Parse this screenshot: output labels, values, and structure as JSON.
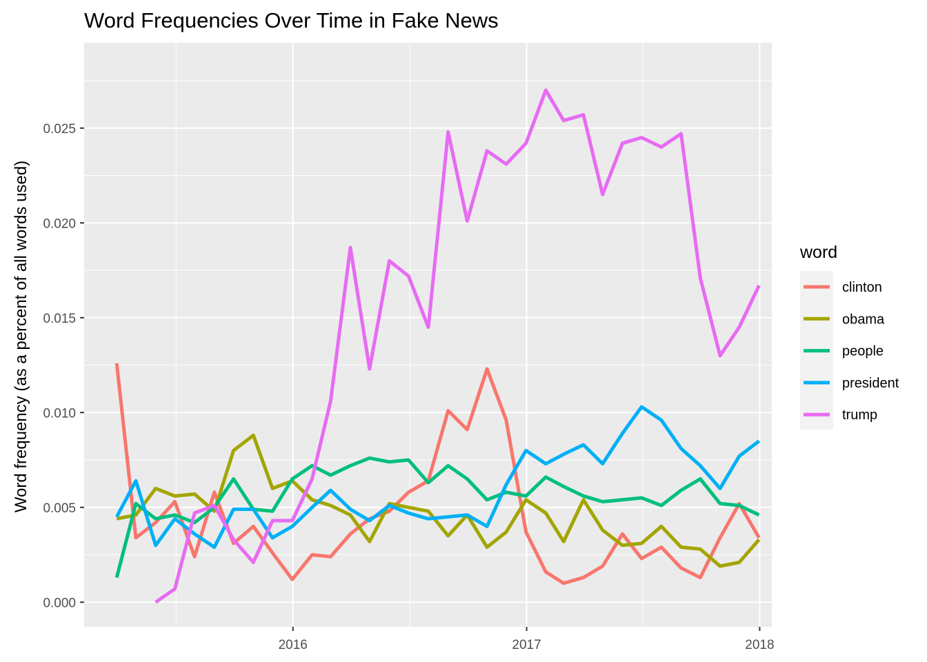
{
  "chart_data": {
    "type": "line",
    "title": "Word Frequencies Over Time in Fake News",
    "xlabel": "",
    "ylabel": "Word frequency (as a percent of all words used)",
    "x_ticks": [
      "2016",
      "2017",
      "2018"
    ],
    "y_ticks": [
      "0.000",
      "0.005",
      "0.010",
      "0.015",
      "0.020",
      "0.025"
    ],
    "ylim": [
      -0.0013,
      0.0295
    ],
    "xlim": [
      "2015-02-08",
      "2018-01-20"
    ],
    "grid": true,
    "legend": {
      "title": "word",
      "placement": "right"
    },
    "x": [
      "2015-03-31",
      "2015-04-30",
      "2015-05-31",
      "2015-06-30",
      "2015-07-31",
      "2015-08-31",
      "2015-09-30",
      "2015-10-31",
      "2015-11-30",
      "2015-12-31",
      "2016-01-31",
      "2016-02-29",
      "2016-03-31",
      "2016-04-30",
      "2016-05-31",
      "2016-06-30",
      "2016-07-31",
      "2016-08-31",
      "2016-09-30",
      "2016-10-31",
      "2016-11-30",
      "2016-12-31",
      "2017-01-31",
      "2017-02-28",
      "2017-03-31",
      "2017-04-30",
      "2017-05-31",
      "2017-06-30",
      "2017-07-31",
      "2017-08-31",
      "2017-09-30",
      "2017-10-31",
      "2017-11-30",
      "2017-12-31"
    ],
    "series": [
      {
        "name": "clinton",
        "color": "#F8766D",
        "values": [
          0.0126,
          0.0034,
          0.0042,
          0.0053,
          0.0024,
          0.0058,
          0.0031,
          0.004,
          0.0026,
          0.0012,
          0.0025,
          0.0024,
          0.0036,
          0.0044,
          0.0048,
          0.0058,
          0.0064,
          0.0101,
          0.0091,
          0.0123,
          0.0096,
          0.0037,
          0.0016,
          0.001,
          0.0013,
          0.0019,
          0.0036,
          0.0023,
          0.0029,
          0.0018,
          0.0013,
          0.0034,
          0.0052,
          0.0034
        ]
      },
      {
        "name": "obama",
        "color": "#A3A500",
        "values": [
          0.0044,
          0.0046,
          0.006,
          0.0056,
          0.0057,
          0.0048,
          0.008,
          0.0088,
          0.006,
          0.0064,
          0.0054,
          0.0051,
          0.0046,
          0.0032,
          0.0052,
          0.005,
          0.0048,
          0.0035,
          0.0046,
          0.0029,
          0.0037,
          0.0054,
          0.0047,
          0.0032,
          0.0054,
          0.0038,
          0.003,
          0.0031,
          0.004,
          0.0029,
          0.0028,
          0.0019,
          0.0021,
          0.0033
        ]
      },
      {
        "name": "people",
        "color": "#00BF7D",
        "values": [
          0.0013,
          0.0052,
          0.0044,
          0.0046,
          0.0042,
          0.005,
          0.0065,
          0.0049,
          0.0048,
          0.0065,
          0.0072,
          0.0067,
          0.0072,
          0.0076,
          0.0074,
          0.0075,
          0.0063,
          0.0072,
          0.0065,
          0.0054,
          0.0058,
          0.0056,
          0.0066,
          0.0061,
          0.0056,
          0.0053,
          0.0054,
          0.0055,
          0.0051,
          0.0059,
          0.0065,
          0.0052,
          0.0051,
          0.0046
        ]
      },
      {
        "name": "president",
        "color": "#00B0F6",
        "values": [
          0.0045,
          0.0064,
          0.003,
          0.0044,
          0.0036,
          0.0029,
          0.0049,
          0.0049,
          0.0034,
          0.004,
          0.005,
          0.0059,
          0.0049,
          0.0043,
          0.0051,
          0.0047,
          0.0044,
          0.0045,
          0.0046,
          0.004,
          0.0062,
          0.008,
          0.0073,
          0.0078,
          0.0083,
          0.0073,
          0.0089,
          0.0103,
          0.0096,
          0.0081,
          0.0072,
          0.006,
          0.0077,
          0.0085
        ]
      },
      {
        "name": "trump",
        "color": "#E76BF3",
        "values": [
          null,
          null,
          0.0,
          0.0007,
          0.0047,
          0.0051,
          0.0033,
          0.0021,
          0.0043,
          0.0043,
          0.0065,
          0.0106,
          0.0187,
          0.0123,
          0.018,
          0.0172,
          0.0145,
          0.0248,
          0.0201,
          0.0238,
          0.0231,
          0.0242,
          0.027,
          0.0254,
          0.0257,
          0.0215,
          0.0242,
          0.0245,
          0.024,
          0.0247,
          0.0171,
          0.013,
          0.0145,
          0.0167
        ]
      }
    ]
  }
}
